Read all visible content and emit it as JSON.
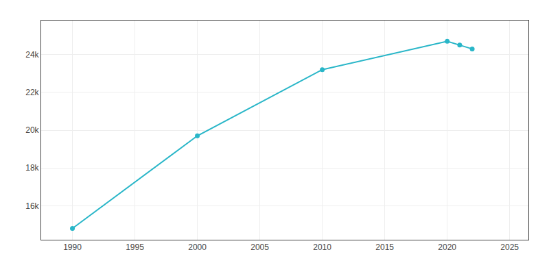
{
  "chart_data": {
    "type": "line",
    "x": [
      1990,
      2000,
      2010,
      2020,
      2021,
      2022
    ],
    "values": [
      14800,
      19700,
      23200,
      24700,
      24500,
      24300
    ],
    "color": "#29b6c8",
    "marker": "circle",
    "xlim": [
      1987.5,
      2026.5
    ],
    "xticks": [
      1990,
      1995,
      2000,
      2005,
      2010,
      2015,
      2020,
      2025
    ],
    "ylim": [
      14200,
      25800
    ],
    "yticks": [
      {
        "value": 16000,
        "label": "16k"
      },
      {
        "value": 18000,
        "label": "18k"
      },
      {
        "value": 20000,
        "label": "20k"
      },
      {
        "value": 22000,
        "label": "22k"
      },
      {
        "value": 24000,
        "label": "24k"
      }
    ],
    "grid": true
  }
}
